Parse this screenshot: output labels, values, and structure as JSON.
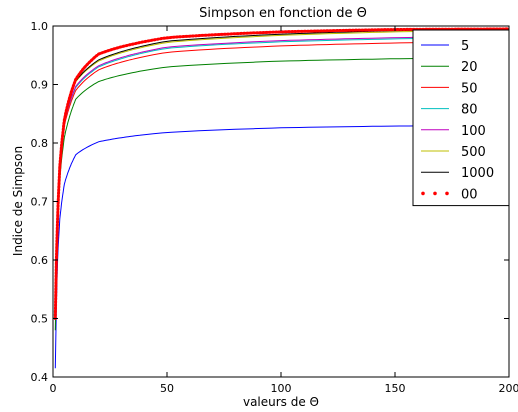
{
  "chart_data": {
    "type": "line",
    "title": "Simpson en fonction de Θ",
    "xlabel": "valeurs de Θ",
    "ylabel": "Indice de Simpson",
    "xlim": [
      0,
      200
    ],
    "ylim": [
      0.4,
      1.0
    ],
    "x_ticks": [
      "0",
      "50",
      "100",
      "150",
      "200"
    ],
    "y_ticks": [
      "0.4",
      "0.5",
      "0.6",
      "0.7",
      "0.8",
      "0.9",
      "1.0"
    ],
    "grid": false,
    "legend_position": "top-right",
    "x": [
      1,
      2,
      3,
      5,
      10,
      20,
      50,
      100,
      150,
      200
    ],
    "series": [
      {
        "name": "5",
        "color": "#0000ff",
        "values": [
          0.415,
          0.6,
          0.67,
          0.73,
          0.78,
          0.802,
          0.818,
          0.826,
          0.829,
          0.83
        ]
      },
      {
        "name": "20",
        "color": "#008000",
        "values": [
          0.48,
          0.66,
          0.74,
          0.81,
          0.875,
          0.905,
          0.93,
          0.94,
          0.944,
          0.946
        ]
      },
      {
        "name": "50",
        "color": "#ff0000",
        "values": [
          0.5,
          0.67,
          0.75,
          0.83,
          0.89,
          0.925,
          0.955,
          0.966,
          0.971,
          0.974
        ]
      },
      {
        "name": "80",
        "color": "#00bfbf",
        "values": [
          0.5,
          0.67,
          0.755,
          0.835,
          0.895,
          0.93,
          0.962,
          0.973,
          0.978,
          0.981
        ]
      },
      {
        "name": "100",
        "color": "#bf00bf",
        "values": [
          0.5,
          0.67,
          0.755,
          0.835,
          0.897,
          0.932,
          0.964,
          0.975,
          0.98,
          0.983
        ]
      },
      {
        "name": "500",
        "color": "#bfbf00",
        "values": [
          0.5,
          0.67,
          0.76,
          0.84,
          0.905,
          0.94,
          0.972,
          0.984,
          0.99,
          0.993
        ]
      },
      {
        "name": "1000",
        "color": "#000000",
        "values": [
          0.5,
          0.67,
          0.76,
          0.84,
          0.906,
          0.942,
          0.974,
          0.986,
          0.992,
          0.995
        ]
      },
      {
        "name": "00",
        "color": "#ff0000",
        "values": [
          0.5,
          0.67,
          0.76,
          0.84,
          0.909,
          0.952,
          0.98,
          0.99,
          0.994,
          0.995
        ]
      }
    ]
  }
}
